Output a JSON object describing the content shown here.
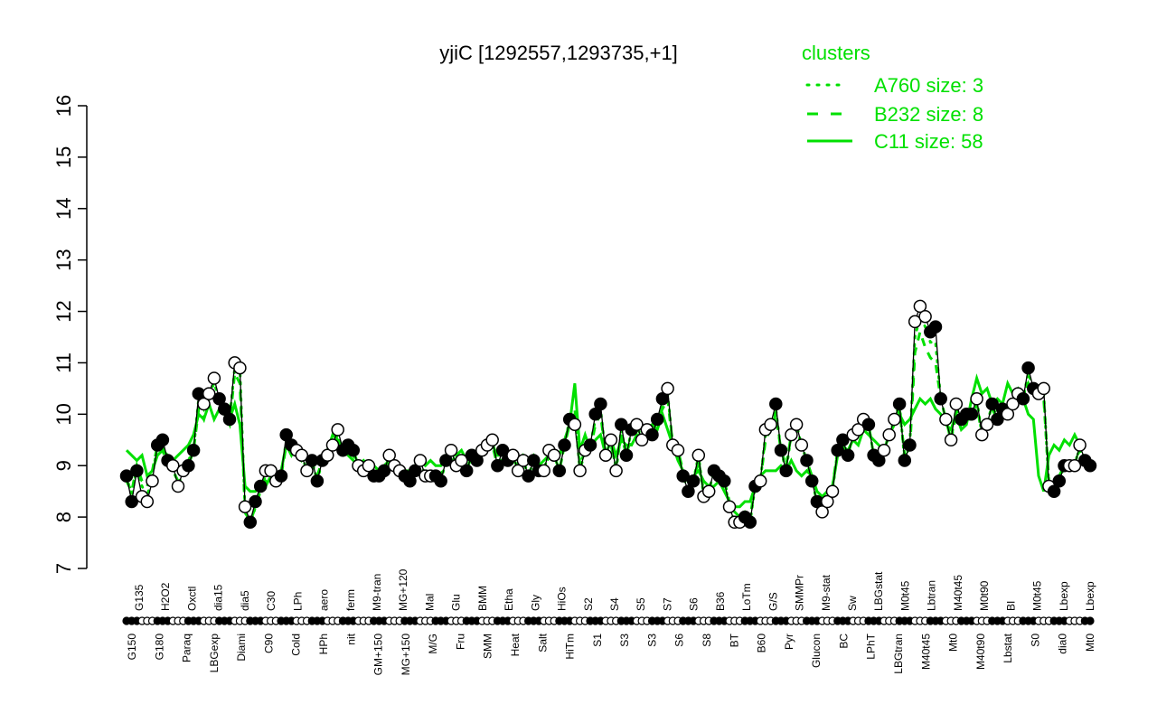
{
  "chart_data": {
    "type": "line",
    "title": "yjiC [1292557,1293735,+1]",
    "xlabel": "",
    "ylabel": "",
    "ylim": [
      7,
      16
    ],
    "yticks": [
      7,
      8,
      9,
      10,
      11,
      12,
      13,
      14,
      15,
      16
    ],
    "grid": false,
    "legend": {
      "title": "clusters",
      "position": "top-right",
      "color": "#00e000",
      "entries": [
        {
          "label": "A760 size: 3",
          "style": "dotted"
        },
        {
          "label": "B232 size: 8",
          "style": "dashed"
        },
        {
          "label": "C11 size: 58",
          "style": "solid"
        }
      ]
    },
    "x_labels_bottom": [
      "G150",
      "G180",
      "Paraq",
      "LBGexp",
      "Diami",
      "C90",
      "Cold",
      "HPh",
      "nit",
      "GM+150",
      "MG+150",
      "M/G",
      "Fru",
      "SMM",
      "Heat",
      "Salt",
      "HiTm",
      "S1",
      "S3",
      "S3",
      "S6",
      "S8",
      "BT",
      "B60",
      "Pyr",
      "Glucon",
      "BC",
      "LPhT",
      "LBGtran",
      "M40t45",
      "Mt0",
      "M40t90",
      "Lbstat",
      "S0",
      "dia0",
      "Mt0"
    ],
    "x_labels_top": [
      "G135",
      "H2O2",
      "Oxctl",
      "dia15",
      "dia5",
      "C30",
      "LPh",
      "aero",
      "ferm",
      "M9-tran",
      "MG+120",
      "Mal",
      "Glu",
      "BMM",
      "Etha",
      "Gly",
      "HiOs",
      "S2",
      "S4",
      "S5",
      "S7",
      "S6",
      "B36",
      "LoTm",
      "G/S",
      "SMMPr",
      "M9-stat",
      "Sw",
      "LBGstat",
      "M0t45",
      "Lbtran",
      "M40t45",
      "M0t90",
      "BI",
      "M0t45",
      "Lbexp",
      "Lbexp"
    ],
    "series": [
      {
        "name": "expression",
        "color": "#000000",
        "values": [
          8.8,
          8.3,
          8.9,
          8.4,
          8.3,
          8.7,
          9.4,
          9.5,
          9.1,
          9.0,
          8.6,
          8.9,
          9.0,
          9.3,
          10.4,
          10.2,
          10.4,
          10.7,
          10.3,
          10.1,
          9.9,
          11.0,
          10.9,
          8.2,
          7.9,
          8.3,
          8.6,
          8.9,
          8.9,
          8.7,
          8.8,
          9.6,
          9.4,
          9.3,
          9.2,
          8.9,
          9.1,
          8.7,
          9.1,
          9.2,
          9.4,
          9.7,
          9.3,
          9.4,
          9.3,
          9.0,
          8.9,
          9.0,
          8.8,
          8.8,
          8.9,
          9.2,
          9.0,
          8.9,
          8.8,
          8.7,
          8.9,
          9.1,
          8.8,
          8.8,
          8.8,
          8.7,
          9.1,
          9.3,
          9.0,
          9.1,
          8.9,
          9.2,
          9.1,
          9.3,
          9.4,
          9.5,
          9.0,
          9.3,
          9.1,
          9.2,
          8.9,
          9.1,
          8.8,
          9.1,
          8.9,
          8.9,
          9.3,
          9.2,
          8.9,
          9.4,
          9.9,
          9.8,
          8.9,
          9.3,
          9.4,
          10.0,
          10.2,
          9.2,
          9.5,
          8.9,
          9.8,
          9.2,
          9.7,
          9.8,
          9.5,
          9.7,
          9.6,
          9.9,
          10.3,
          10.5,
          9.4,
          9.3,
          8.8,
          8.5,
          8.7,
          9.2,
          8.4,
          8.5,
          8.9,
          8.8,
          8.7,
          8.2,
          7.9,
          7.9,
          8.0,
          7.9,
          8.6,
          8.7,
          9.7,
          9.8,
          10.2,
          9.3,
          8.9,
          9.6,
          9.8,
          9.4,
          9.1,
          8.7,
          8.3,
          8.1,
          8.3,
          8.5,
          9.3,
          9.5,
          9.2,
          9.6,
          9.7,
          9.9,
          9.8,
          9.2,
          9.1,
          9.3,
          9.6,
          9.9,
          10.2,
          9.1,
          9.4,
          11.8,
          12.1,
          11.9,
          11.6,
          11.7,
          10.3,
          9.9,
          9.5,
          10.2,
          9.9,
          10.0,
          10.0,
          10.3,
          9.6,
          9.8,
          10.2,
          9.9,
          10.1,
          10.0,
          10.2,
          10.4,
          10.3,
          10.9,
          10.5,
          10.4,
          10.5,
          8.6,
          8.5,
          8.7,
          9.0,
          9.0,
          9.0,
          9.4,
          9.1,
          9.0
        ]
      },
      {
        "name": "C11 size: 58",
        "color": "#00e000",
        "style": "solid",
        "values": [
          9.3,
          9.2,
          9.1,
          9.2,
          8.8,
          8.9,
          9.2,
          9.3,
          9.2,
          9.1,
          9.2,
          9.3,
          9.4,
          9.6,
          10.0,
          9.9,
          10.2,
          9.9,
          10.1,
          10.0,
          9.9,
          10.2,
          9.8,
          8.6,
          8.5,
          8.5,
          8.6,
          8.6,
          8.8,
          8.8,
          8.9,
          9.4,
          9.2,
          9.4,
          9.1,
          9.2,
          9.0,
          9.1,
          9.2,
          9.3,
          9.6,
          9.5,
          9.3,
          9.2,
          9.1,
          9.0,
          9.1,
          9.0,
          9.0,
          8.9,
          9.0,
          9.1,
          9.0,
          9.0,
          8.9,
          8.9,
          9.0,
          9.1,
          9.0,
          9.1,
          9.0,
          9.0,
          9.2,
          9.2,
          9.2,
          9.3,
          9.1,
          9.2,
          9.3,
          9.2,
          9.3,
          9.4,
          9.2,
          9.2,
          9.1,
          9.1,
          9.0,
          9.2,
          9.1,
          9.2,
          9.0,
          9.1,
          9.2,
          9.3,
          9.2,
          9.5,
          9.8,
          10.6,
          9.3,
          9.6,
          9.3,
          9.5,
          9.6,
          9.2,
          9.5,
          9.2,
          9.5,
          9.4,
          9.4,
          9.6,
          9.6,
          9.7,
          9.8,
          9.7,
          10.0,
          9.7,
          9.4,
          9.1,
          8.9,
          8.7,
          8.8,
          8.9,
          8.7,
          8.6,
          8.6,
          8.7,
          8.5,
          8.3,
          8.2,
          8.2,
          8.3,
          8.3,
          8.6,
          8.8,
          8.9,
          8.9,
          8.9,
          9.0,
          8.9,
          9.1,
          8.9,
          8.8,
          8.9,
          8.8,
          8.5,
          8.4,
          8.5,
          8.6,
          9.2,
          9.3,
          9.3,
          9.5,
          9.4,
          9.7,
          9.6,
          9.5,
          9.4,
          9.3,
          9.6,
          9.8,
          10.0,
          9.8,
          9.9,
          10.1,
          10.3,
          10.2,
          10.3,
          10.1,
          10.0,
          9.8,
          9.7,
          10.0,
          9.7,
          9.8,
          10.3,
          10.7,
          10.4,
          10.5,
          10.2,
          10.3,
          10.2,
          10.6,
          10.4,
          10.5,
          10.3,
          10.0,
          9.9,
          8.8,
          8.5,
          9.2,
          9.4,
          9.3,
          9.5,
          9.4,
          9.6,
          9.4
        ]
      },
      {
        "name": "B232 size: 8",
        "color": "#00e000",
        "style": "dashed",
        "values": [
          8.7,
          8.5,
          9.0,
          8.7,
          8.6,
          8.9,
          9.4,
          9.3,
          9.0,
          8.9,
          8.7,
          8.9,
          9.0,
          9.3,
          10.1,
          9.9,
          10.3,
          10.4,
          10.2,
          10.0,
          9.8,
          10.8,
          10.6,
          8.1,
          7.9,
          8.2,
          8.5,
          8.7,
          8.8,
          8.7,
          8.8,
          9.4,
          9.3,
          9.3,
          9.1,
          9.0,
          9.0,
          8.8,
          9.1,
          9.2,
          9.4,
          9.5,
          9.3,
          9.3,
          9.2,
          9.0,
          8.9,
          9.0,
          8.8,
          8.8,
          8.9,
          9.1,
          9.0,
          8.9,
          8.8,
          8.8,
          8.9,
          9.1,
          8.9,
          8.8,
          8.8,
          8.8,
          9.1,
          9.2,
          9.0,
          9.1,
          8.9,
          9.2,
          9.1,
          9.2,
          9.3,
          9.4,
          9.0,
          9.2,
          9.1,
          9.1,
          8.9,
          9.1,
          8.8,
          9.1,
          8.9,
          8.9,
          9.2,
          9.2,
          8.9,
          9.4,
          9.8,
          10.1,
          9.0,
          9.3,
          9.3,
          9.8,
          10.0,
          9.2,
          9.4,
          9.0,
          9.6,
          9.2,
          9.6,
          9.7,
          9.5,
          9.7,
          9.6,
          9.9,
          10.1,
          10.3,
          9.4,
          9.3,
          8.9,
          8.6,
          8.7,
          9.1,
          8.5,
          8.6,
          8.8,
          8.8,
          8.7,
          8.3,
          8.1,
          8.0,
          8.1,
          8.0,
          8.6,
          8.7,
          9.5,
          9.7,
          10.0,
          9.3,
          9.0,
          9.6,
          9.7,
          9.4,
          9.1,
          8.8,
          8.4,
          8.2,
          8.4,
          8.6,
          9.3,
          9.4,
          9.2,
          9.6,
          9.6,
          9.8,
          9.8,
          9.2,
          9.2,
          9.3,
          9.6,
          9.8,
          10.1,
          9.2,
          9.3,
          11.2,
          11.6,
          11.3,
          11.1,
          11.0,
          10.3,
          9.9,
          9.5,
          10.0,
          9.8,
          9.9,
          9.9,
          10.2,
          9.6,
          9.8,
          10.1,
          9.9,
          10.0,
          10.0,
          10.1,
          10.3,
          10.3,
          10.6,
          10.4,
          10.3,
          10.3,
          8.7,
          8.5,
          8.8,
          9.0,
          9.0,
          9.1,
          9.3,
          9.1,
          9.0
        ]
      },
      {
        "name": "A760 size: 3",
        "color": "#00e000",
        "style": "dotted",
        "values": [
          8.8,
          8.4,
          9.0,
          8.6,
          8.4,
          8.8,
          9.4,
          9.4,
          9.0,
          9.0,
          8.6,
          8.9,
          9.1,
          9.3,
          10.3,
          10.1,
          10.4,
          10.6,
          10.3,
          10.1,
          9.9,
          10.9,
          10.9,
          8.1,
          7.8,
          8.2,
          8.6,
          8.8,
          8.9,
          8.7,
          8.8,
          9.5,
          9.4,
          9.3,
          9.2,
          8.9,
          9.1,
          8.7,
          9.1,
          9.2,
          9.4,
          9.6,
          9.3,
          9.4,
          9.3,
          9.0,
          8.9,
          9.0,
          8.8,
          8.8,
          8.9,
          9.2,
          9.0,
          8.9,
          8.8,
          8.7,
          8.9,
          9.1,
          8.8,
          8.8,
          8.8,
          8.7,
          9.1,
          9.3,
          9.0,
          9.1,
          8.9,
          9.2,
          9.1,
          9.3,
          9.4,
          9.5,
          9.0,
          9.3,
          9.1,
          9.2,
          8.9,
          9.1,
          8.8,
          9.1,
          8.9,
          8.9,
          9.3,
          9.2,
          8.9,
          9.4,
          9.9,
          10.0,
          8.9,
          9.3,
          9.4,
          9.9,
          10.1,
          9.2,
          9.5,
          8.9,
          9.7,
          9.2,
          9.7,
          9.8,
          9.5,
          9.7,
          9.6,
          9.9,
          10.2,
          10.4,
          9.4,
          9.3,
          8.8,
          8.5,
          8.7,
          9.2,
          8.4,
          8.5,
          8.9,
          8.8,
          8.7,
          8.2,
          7.9,
          7.9,
          8.0,
          7.9,
          8.6,
          8.7,
          9.6,
          9.7,
          10.1,
          9.3,
          8.9,
          9.6,
          9.8,
          9.4,
          9.1,
          8.7,
          8.3,
          8.1,
          8.3,
          8.5,
          9.3,
          9.5,
          9.2,
          9.6,
          9.7,
          9.9,
          9.8,
          9.2,
          9.1,
          9.3,
          9.6,
          9.9,
          10.2,
          9.1,
          9.4,
          11.5,
          11.9,
          11.7,
          11.4,
          11.4,
          10.3,
          9.9,
          9.5,
          10.1,
          9.9,
          10.0,
          10.0,
          10.3,
          9.6,
          9.8,
          10.2,
          9.9,
          10.1,
          10.0,
          10.2,
          10.4,
          10.3,
          10.8,
          10.5,
          10.4,
          10.4,
          8.6,
          8.4,
          8.7,
          9.0,
          9.0,
          9.0,
          9.4,
          9.1,
          9.0
        ]
      }
    ]
  }
}
